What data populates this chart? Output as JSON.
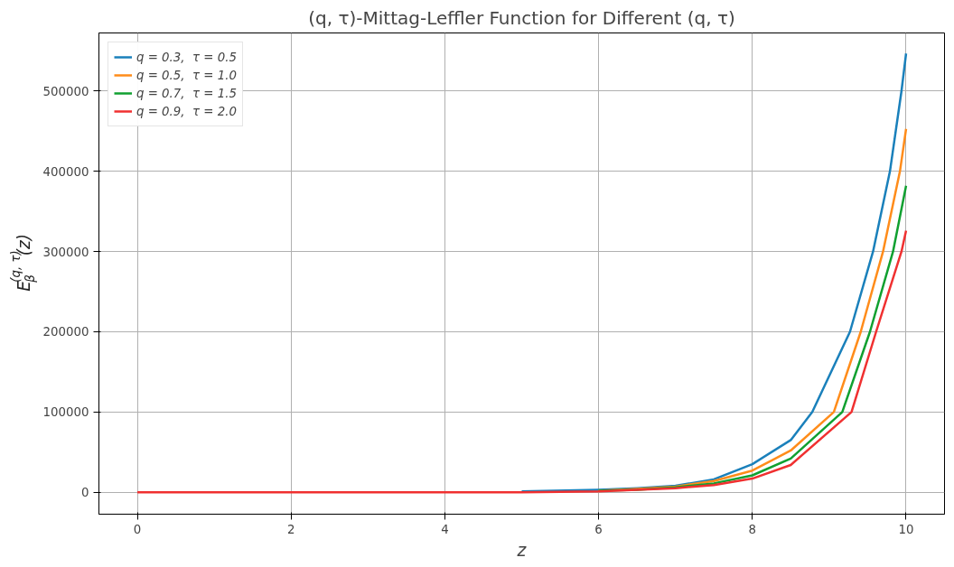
{
  "chart_data": {
    "type": "line",
    "title": "(q, τ)-Mittag-Leffler Function for Different (q, τ)",
    "xlabel": "z",
    "ylabel": "E$_{β}$$^{(q, τ)}$(z)",
    "xlim": [
      -0.5,
      10.5
    ],
    "ylim": [
      -27400,
      572600
    ],
    "xticks": [
      0,
      2,
      4,
      6,
      8,
      10
    ],
    "yticks": [
      0,
      100000,
      200000,
      300000,
      400000,
      500000
    ],
    "grid": true,
    "legend": "top left",
    "series": [
      {
        "name": "q = 0.3,  τ = 0.5",
        "color": "#1a80bb",
        "x": [
          5,
          6,
          6.5,
          7,
          7.5,
          8,
          8.5,
          8.78,
          9.27,
          9.57,
          9.79,
          9.94,
          10
        ],
        "values": [
          1000,
          3000,
          5000,
          8000,
          16000,
          35000,
          65000,
          100000,
          200000,
          300000,
          400000,
          500000,
          547000
        ]
      },
      {
        "name": "q = 0.5,  τ = 1.0",
        "color": "#ff8c1a",
        "x": [
          6,
          6.5,
          7,
          7.5,
          8,
          8.5,
          9.06,
          9.41,
          9.7,
          9.92,
          10
        ],
        "values": [
          2000,
          4000,
          7000,
          14000,
          27000,
          52000,
          100000,
          200000,
          300000,
          400000,
          453000
        ]
      },
      {
        "name": "q = 0.7,  τ = 1.5",
        "color": "#10a030",
        "x": [
          6,
          6.5,
          7,
          7.5,
          8,
          8.5,
          9.17,
          9.53,
          9.83,
          10
        ],
        "values": [
          2000,
          3000,
          6000,
          11000,
          21000,
          42000,
          100000,
          200000,
          300000,
          382000
        ]
      },
      {
        "name": "q = 0.9,  τ = 2.0",
        "color": "#f03030",
        "x": [
          0,
          2,
          4,
          5,
          6,
          6.5,
          7,
          7.5,
          8,
          8.5,
          9.29,
          9.61,
          9.94,
          10
        ],
        "values": [
          0,
          0,
          0,
          0,
          1000,
          3000,
          5000,
          9000,
          17000,
          34000,
          100000,
          200000,
          300000,
          326000
        ]
      }
    ]
  }
}
